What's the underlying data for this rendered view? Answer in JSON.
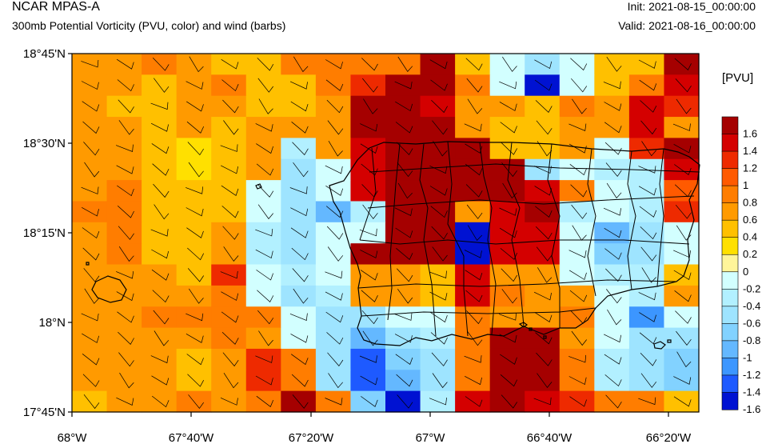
{
  "header": {
    "title": "NCAR MPAS-A",
    "subtitle": "300mb Potential Vorticity (PVU, color) and wind (barbs)",
    "init": "Init: 2021-08-15_00:00:00",
    "valid": "Valid: 2021-08-16_00:00:00"
  },
  "map": {
    "lat_labels": [
      "18°45'N",
      "18°30'N",
      "18°15'N",
      "18°N",
      "17°45'N"
    ],
    "lon_labels": [
      "68°W",
      "67°40'W",
      "67°20'W",
      "67°W",
      "66°40'W",
      "66°20'W"
    ],
    "lat_range": [
      17.75,
      18.75
    ],
    "lon_range": [
      -68.0,
      -66.25
    ],
    "grid_note": "cells approx 0.1 deg",
    "pv_grid": [
      [
        0.6,
        0.6,
        0.8,
        0.6,
        0.4,
        0.4,
        0.8,
        0.8,
        0.8,
        0.8,
        1.8,
        0.4,
        -0.2,
        -0.6,
        -0.2,
        0.4,
        0.4,
        1.8
      ],
      [
        0.6,
        0.6,
        0.4,
        0.6,
        0.8,
        0.4,
        0.4,
        0.8,
        1.2,
        1.8,
        1.8,
        0.8,
        -0.2,
        -1.8,
        -0.2,
        0.4,
        0.8,
        1.4
      ],
      [
        0.6,
        0.4,
        0.4,
        0.6,
        0.6,
        0.4,
        0.4,
        0.6,
        1.8,
        1.8,
        1.4,
        0.6,
        0.6,
        0.4,
        0.8,
        0.6,
        1.4,
        1.2
      ],
      [
        0.6,
        0.6,
        0.4,
        0.6,
        0.4,
        0.6,
        0.6,
        0.6,
        1.6,
        1.8,
        1.6,
        0.6,
        0.4,
        0.4,
        0.6,
        0.6,
        1.4,
        0.6
      ],
      [
        0.6,
        0.6,
        0.4,
        0.2,
        0.4,
        0.6,
        -0.4,
        0.6,
        1.4,
        1.8,
        1.8,
        1.6,
        0.4,
        0.4,
        0.6,
        -0.2,
        1.2,
        1.8
      ],
      [
        0.6,
        0.6,
        0.4,
        0.2,
        0.4,
        0.6,
        -0.6,
        -0.2,
        1.4,
        1.8,
        1.8,
        1.8,
        1.8,
        -0.6,
        -0.2,
        -0.4,
        -0.4,
        1.4
      ],
      [
        0.6,
        0.8,
        0.4,
        0.4,
        0.4,
        -0.2,
        -0.6,
        -0.2,
        1.4,
        1.8,
        1.8,
        1.8,
        1.6,
        1.4,
        0.8,
        -0.2,
        -0.4,
        1.0
      ],
      [
        0.8,
        0.8,
        0.4,
        0.4,
        0.4,
        -0.2,
        -0.6,
        -1.0,
        -0.4,
        1.8,
        1.8,
        0.6,
        1.4,
        1.6,
        -0.4,
        -0.2,
        -0.4,
        1.2
      ],
      [
        0.6,
        0.8,
        0.4,
        0.4,
        0.6,
        -0.4,
        -0.6,
        -0.2,
        -0.2,
        1.8,
        1.8,
        -1.8,
        1.4,
        1.4,
        -0.2,
        -1.0,
        -0.6,
        -0.2
      ],
      [
        0.6,
        0.8,
        0.4,
        0.4,
        0.6,
        -0.4,
        -0.6,
        -0.2,
        1.6,
        1.8,
        1.8,
        -1.8,
        1.4,
        1.4,
        -0.2,
        -0.8,
        -0.6,
        -0.2
      ],
      [
        0.6,
        0.6,
        0.6,
        0.4,
        1.2,
        -0.2,
        -0.4,
        -0.2,
        0.6,
        0.6,
        0.4,
        1.4,
        0.6,
        0.6,
        -0.2,
        -0.4,
        -0.4,
        0.4
      ],
      [
        0.6,
        0.6,
        0.6,
        0.6,
        0.8,
        -0.2,
        -0.6,
        -0.4,
        0.6,
        0.6,
        0.4,
        1.4,
        0.8,
        0.6,
        0.6,
        -0.2,
        -0.4,
        0.6
      ],
      [
        0.6,
        0.6,
        0.8,
        0.8,
        0.8,
        0.8,
        -0.2,
        -0.6,
        -0.6,
        -0.2,
        -0.2,
        0.8,
        0.6,
        0.6,
        0.8,
        -0.2,
        -1.2,
        -0.2
      ],
      [
        0.6,
        0.6,
        0.6,
        0.6,
        0.8,
        0.6,
        -0.2,
        -0.6,
        -1.0,
        -0.6,
        -0.4,
        0.8,
        1.6,
        1.6,
        0.6,
        -0.2,
        -0.6,
        -0.6
      ],
      [
        0.6,
        0.6,
        0.6,
        0.4,
        0.6,
        1.2,
        0.8,
        -0.6,
        -1.4,
        -0.8,
        -0.6,
        0.8,
        1.6,
        1.6,
        0.8,
        -0.4,
        -0.6,
        -0.8
      ],
      [
        0.6,
        0.6,
        0.6,
        0.4,
        0.6,
        1.2,
        0.8,
        -0.6,
        -1.4,
        -1.0,
        -0.6,
        0.8,
        1.6,
        1.6,
        0.8,
        -0.4,
        -0.6,
        -0.8
      ],
      [
        0.4,
        0.6,
        0.6,
        0.8,
        0.6,
        0.8,
        1.8,
        0.8,
        -0.8,
        -1.8,
        -0.4,
        1.4,
        1.6,
        1.4,
        1.2,
        0.8,
        0.8,
        0.4
      ]
    ],
    "colors": {
      "coast": "#000000",
      "frame": "#000000"
    }
  },
  "colorbar": {
    "title": "[PVU]",
    "labels": [
      "1.6",
      "1.4",
      "1.2",
      "1",
      "0.8",
      "0.6",
      "0.4",
      "0.2",
      "0",
      "-0.2",
      "-0.4",
      "-0.6",
      "-0.8",
      "-1",
      "-1.2",
      "-1.4",
      "-1.6"
    ],
    "colors": [
      "#a50000",
      "#d40000",
      "#ee2a00",
      "#ff5a00",
      "#ff7d00",
      "#ff9a00",
      "#ffc000",
      "#ffe000",
      "#fff59a",
      "#d2ffff",
      "#b2f0ff",
      "#9ee4ff",
      "#82d2ff",
      "#64b8ff",
      "#3c96ff",
      "#1e5aff",
      "#0012d2"
    ]
  }
}
